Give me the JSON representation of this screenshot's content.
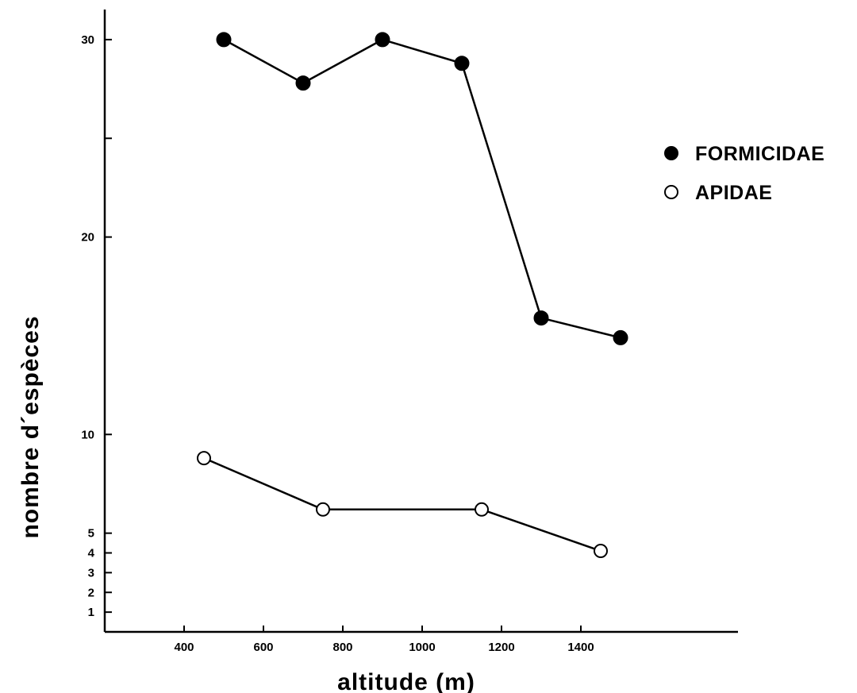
{
  "chart_data": {
    "type": "line",
    "title": "",
    "xlabel": "altitude (m)",
    "ylabel": "nombre d´espèces",
    "xlim": [
      200,
      1800
    ],
    "ylim": [
      0,
      33
    ],
    "x_ticks": [
      400,
      600,
      800,
      1000,
      1200,
      1400
    ],
    "y_ticks": [
      1,
      2,
      3,
      4,
      5,
      10,
      20,
      30
    ],
    "y_ticks_unlabeled": [
      25
    ],
    "grid": false,
    "legend_position": "right",
    "series": [
      {
        "name": "FORMICIDAE",
        "marker": "filled-circle",
        "color": "#000000",
        "x": [
          500,
          700,
          900,
          1100,
          1300,
          1500
        ],
        "y": [
          30,
          27.8,
          30,
          28.8,
          15.9,
          14.9
        ]
      },
      {
        "name": "APIDAE",
        "marker": "open-circle",
        "color": "#000000",
        "x": [
          450,
          750,
          1150,
          1450
        ],
        "y": [
          8.8,
          6.2,
          6.2,
          4.1
        ]
      }
    ]
  }
}
